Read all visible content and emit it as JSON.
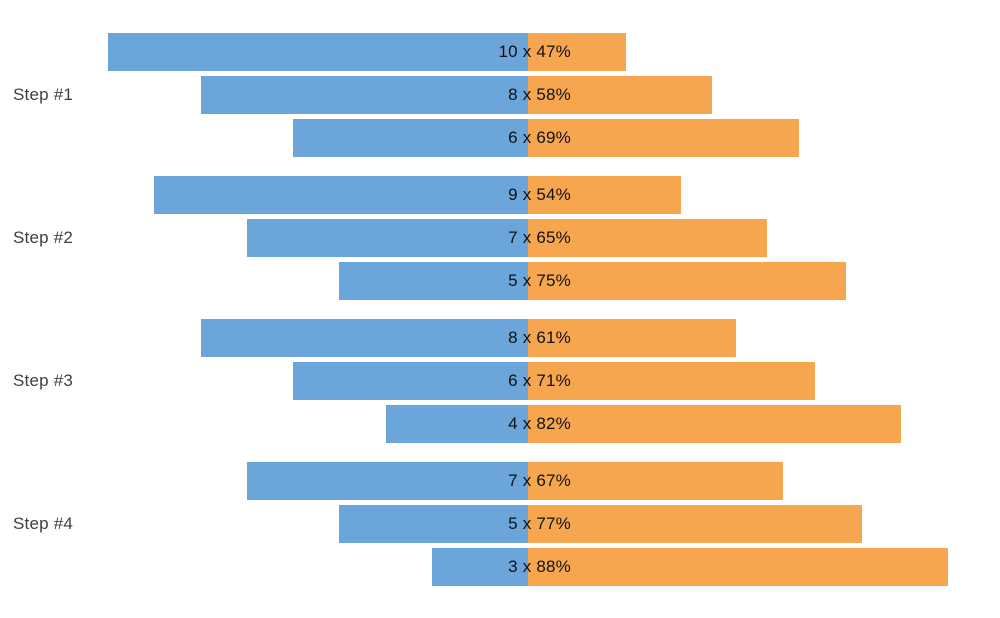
{
  "chart_data": {
    "type": "bar",
    "variant": "diverging-paired-horizontal",
    "title": "",
    "xlabel": "",
    "ylabel": "",
    "grid": false,
    "axes_visible": false,
    "legend": null,
    "label_format": "{value} x {percent}%",
    "colors": {
      "left_bar": "#6CA5D9",
      "right_bar": "#F7A650",
      "bar_label": "#111111",
      "group_label": "#3F3F3F",
      "background": "#FFFFFF"
    },
    "groups": [
      {
        "label": "Step #1",
        "rows": [
          {
            "value": 10,
            "percent": 47,
            "label": "10 x 47%"
          },
          {
            "value": 8,
            "percent": 58,
            "label": "8 x 58%"
          },
          {
            "value": 6,
            "percent": 69,
            "label": "6 x 69%"
          }
        ]
      },
      {
        "label": "Step #2",
        "rows": [
          {
            "value": 9,
            "percent": 54,
            "label": "9 x 54%"
          },
          {
            "value": 7,
            "percent": 65,
            "label": "7 x 65%"
          },
          {
            "value": 5,
            "percent": 75,
            "label": "5 x 75%"
          }
        ]
      },
      {
        "label": "Step #3",
        "rows": [
          {
            "value": 8,
            "percent": 61,
            "label": "8 x 61%"
          },
          {
            "value": 6,
            "percent": 71,
            "label": "6 x 71%"
          },
          {
            "value": 4,
            "percent": 82,
            "label": "4 x 82%"
          }
        ]
      },
      {
        "label": "Step #4",
        "rows": [
          {
            "value": 7,
            "percent": 67,
            "label": "7 x 67%"
          },
          {
            "value": 5,
            "percent": 77,
            "label": "5 x 77%"
          },
          {
            "value": 3,
            "percent": 88,
            "label": "3 x 88%"
          }
        ]
      }
    ]
  }
}
